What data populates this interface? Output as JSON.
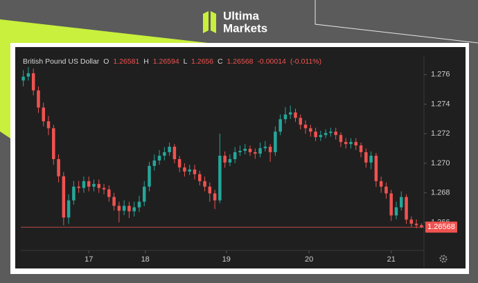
{
  "brand": {
    "line1": "Ultima",
    "line2": "Markets"
  },
  "chart_data": {
    "type": "candlestick",
    "legend": {
      "name": "British Pound US Dollar",
      "items": [
        {
          "label": "O",
          "value": "1.26581"
        },
        {
          "label": "H",
          "value": "1.26594"
        },
        {
          "label": "L",
          "value": "1.2656"
        },
        {
          "label": "C",
          "value": "1.26568"
        }
      ],
      "change": "-0.00014",
      "change_pct": "(-0.011%)"
    },
    "open": [
      1.2756,
      1.27586,
      1.27609,
      1.27493,
      1.27377,
      1.27284,
      1.27237,
      1.27028,
      1.26912,
      1.26633,
      1.26749,
      1.26842,
      1.26833,
      1.26879,
      1.26842,
      1.2686,
      1.26833,
      1.26823,
      1.26772,
      1.26712,
      1.26679,
      1.26712,
      1.26675,
      1.26702,
      1.2674,
      1.26842,
      1.26982,
      1.27019,
      1.27051,
      1.27075,
      1.27112,
      1.27028,
      1.26972,
      1.26944,
      1.26958,
      1.26926,
      1.26879,
      1.26842,
      1.26796,
      1.26749,
      1.27051,
      1.27005,
      1.27028,
      1.27075,
      1.27084,
      1.27098,
      1.27075,
      1.27065,
      1.27102,
      1.27112,
      1.27075,
      1.27214,
      1.27298,
      1.2733,
      1.27344,
      1.27307,
      1.27261,
      1.27237,
      1.27214,
      1.27177,
      1.27191,
      1.27205,
      1.27214,
      1.27191,
      1.27144,
      1.2713,
      1.27144,
      1.27121,
      1.27075,
      1.27005,
      1.27051,
      1.26879,
      1.26842,
      1.26796,
      1.26647,
      1.26702,
      1.26772,
      1.26619,
      1.26591,
      1.26581
    ],
    "high": [
      1.2763,
      1.2765,
      1.2764,
      1.2752,
      1.2741,
      1.2732,
      1.2726,
      1.2706,
      1.2694,
      1.2679,
      1.2688,
      1.2688,
      1.2691,
      1.2691,
      1.2689,
      1.2689,
      1.2686,
      1.2685,
      1.268,
      1.2674,
      1.2675,
      1.2674,
      1.2674,
      1.2678,
      1.2688,
      1.2701,
      1.2706,
      1.2709,
      1.2711,
      1.2714,
      1.2713,
      1.2705,
      1.27,
      1.2699,
      1.2699,
      1.2695,
      1.2691,
      1.2687,
      1.2682,
      1.272,
      1.2708,
      1.2706,
      1.2711,
      1.2712,
      1.2713,
      1.2712,
      1.271,
      1.2714,
      1.2715,
      1.2713,
      1.2725,
      1.2733,
      1.2738,
      1.2739,
      1.2737,
      1.2733,
      1.2729,
      1.2726,
      1.2724,
      1.2722,
      1.2723,
      1.2724,
      1.2724,
      1.2721,
      1.2717,
      1.2717,
      1.2717,
      1.2714,
      1.271,
      1.2708,
      1.2707,
      1.2691,
      1.2687,
      1.2682,
      1.2674,
      1.2681,
      1.2679,
      1.2664,
      1.2662,
      1.26594
    ],
    "low": [
      1.2752,
      1.2756,
      1.2746,
      1.2734,
      1.2725,
      1.2719,
      1.2699,
      1.2687,
      1.2658,
      1.2659,
      1.2672,
      1.268,
      1.268,
      1.2681,
      1.2681,
      1.268,
      1.2679,
      1.2674,
      1.2668,
      1.266,
      1.2665,
      1.2663,
      1.2664,
      1.2667,
      1.2671,
      1.2681,
      1.2695,
      1.2699,
      1.2702,
      1.2705,
      1.27,
      1.2694,
      1.2691,
      1.2692,
      1.2689,
      1.2685,
      1.2681,
      1.2674,
      1.2669,
      1.2673,
      1.2697,
      1.2698,
      1.27,
      1.2705,
      1.2706,
      1.2705,
      1.2703,
      1.2704,
      1.2708,
      1.2701,
      1.2705,
      1.2719,
      1.2727,
      1.273,
      1.2728,
      1.2723,
      1.272,
      1.2718,
      1.2715,
      1.2715,
      1.2717,
      1.2718,
      1.2716,
      1.2711,
      1.271,
      1.271,
      1.2709,
      1.2704,
      1.2697,
      1.2696,
      1.2684,
      1.268,
      1.2676,
      1.2661,
      1.2662,
      1.2668,
      1.2659,
      1.2657,
      1.2656,
      1.2656
    ],
    "close": [
      1.27586,
      1.27609,
      1.27493,
      1.27377,
      1.27284,
      1.27237,
      1.27028,
      1.26912,
      1.26633,
      1.26749,
      1.26842,
      1.26833,
      1.26879,
      1.26842,
      1.2686,
      1.26833,
      1.26823,
      1.26772,
      1.26712,
      1.26679,
      1.26712,
      1.26675,
      1.26702,
      1.2674,
      1.26842,
      1.26982,
      1.27019,
      1.27051,
      1.27075,
      1.27112,
      1.27028,
      1.26972,
      1.26944,
      1.26958,
      1.26926,
      1.26879,
      1.26842,
      1.26796,
      1.26749,
      1.27051,
      1.27005,
      1.27028,
      1.27075,
      1.27084,
      1.27098,
      1.27075,
      1.27065,
      1.27102,
      1.27112,
      1.27075,
      1.27214,
      1.27298,
      1.2733,
      1.27344,
      1.27307,
      1.27261,
      1.27237,
      1.27214,
      1.27177,
      1.27191,
      1.27205,
      1.27214,
      1.27191,
      1.27144,
      1.2713,
      1.27144,
      1.27121,
      1.27075,
      1.27005,
      1.27051,
      1.26879,
      1.26842,
      1.26796,
      1.26647,
      1.26702,
      1.26772,
      1.26619,
      1.26591,
      1.26581,
      1.26568
    ],
    "up_color": "#26a69a",
    "down_color": "#ef5350",
    "xlim": [
      -0.5,
      79.5
    ],
    "xticks": [
      {
        "value": 13,
        "label": "17"
      },
      {
        "value": 24.2,
        "label": "18"
      },
      {
        "value": 40.3,
        "label": "19"
      },
      {
        "value": 56.7,
        "label": "20"
      },
      {
        "value": 73,
        "label": "21"
      }
    ],
    "ylim": [
      1.2641,
      1.2773
    ],
    "yticks": [
      1.266,
      1.268,
      {
        "value": 1.27,
        "label": "1.270"
      },
      1.272,
      1.274,
      1.276
    ],
    "grid": false
  }
}
